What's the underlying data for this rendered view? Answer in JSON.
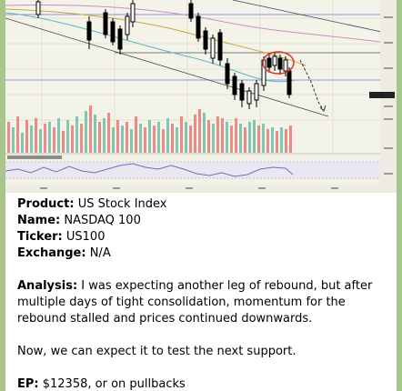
{
  "colors": {
    "background": "#a9c58c",
    "chart_bg": "#f4f3ea",
    "candle_up": "#ffffff",
    "candle_down": "#000000",
    "volume_up": "#7fc6b4",
    "volume_down": "#e98c86",
    "highlight_circle": "#d9332b",
    "rsi_line": "#6c72b8"
  },
  "post": {
    "fields": [
      {
        "label": "Product:",
        "value": " US Stock Index"
      },
      {
        "label": "Name:",
        "value": " NASDAQ 100"
      },
      {
        "label": "Ticker:",
        "value": " US100"
      },
      {
        "label": "Exchange:",
        "value": " N/A"
      }
    ],
    "analysis_label": "Analysis:",
    "analysis_text": " I was expecting another leg of rebound, but after multiple days of tight consolidation, momentum for the rebound stalled and prices continued downwards.",
    "next_text": "Now, we can expect it to test the next support.",
    "ep_label": "EP:",
    "ep_value": " $12358, or on pullbacks"
  }
}
